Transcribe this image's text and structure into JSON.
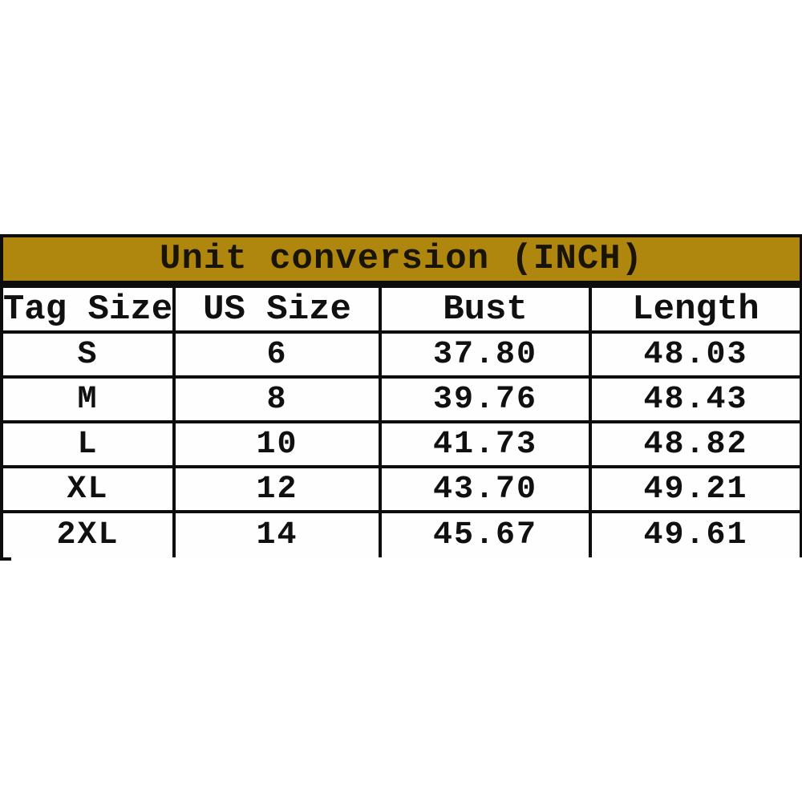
{
  "page": {
    "background_color": "#ffffff",
    "title_band_color": "#b0870e",
    "border_color": "#0d0d0d"
  },
  "chart_data": {
    "type": "table",
    "title": "Unit conversion (INCH)",
    "columns": [
      "Tag Size",
      "US Size",
      "Bust",
      "Length"
    ],
    "rows": [
      [
        "S",
        "6",
        "37.80",
        "48.03"
      ],
      [
        "M",
        "8",
        "39.76",
        "48.43"
      ],
      [
        "L",
        "10",
        "41.73",
        "48.82"
      ],
      [
        "XL",
        "12",
        "43.70",
        "49.21"
      ],
      [
        "2XL",
        "14",
        "45.67",
        "49.61"
      ]
    ],
    "layout": {
      "title_position": "top-band-centered",
      "grid": "on",
      "units": "INCH"
    }
  }
}
